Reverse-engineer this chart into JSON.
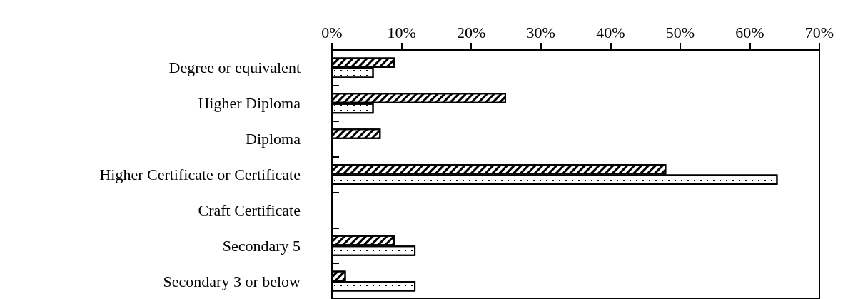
{
  "chart_data": {
    "type": "bar",
    "orientation": "horizontal",
    "categories": [
      "Degree or equivalent",
      "Higher Diploma",
      "Diploma",
      "Higher Certificate or Certificate",
      "Craft Certificate",
      "Secondary 5",
      "Secondary 3 or below"
    ],
    "series": [
      {
        "color": "#000000",
        "values": [
          9,
          25,
          7,
          48,
          0,
          9,
          2
        ]
      },
      {
        "color": "#000000",
        "values": [
          6,
          6,
          0,
          64,
          0,
          12,
          12
        ]
      }
    ],
    "xlim": [
      0,
      70
    ],
    "xticks": [
      {
        "value": 0,
        "label": "0%"
      },
      {
        "value": 10,
        "label": "10%"
      },
      {
        "value": 20,
        "label": "20%"
      },
      {
        "value": 30,
        "label": "30%"
      },
      {
        "value": 40,
        "label": "40%"
      },
      {
        "value": 50,
        "label": "50%"
      },
      {
        "value": 60,
        "label": "60%"
      },
      {
        "value": 70,
        "label": "70%"
      }
    ],
    "grid": false
  }
}
